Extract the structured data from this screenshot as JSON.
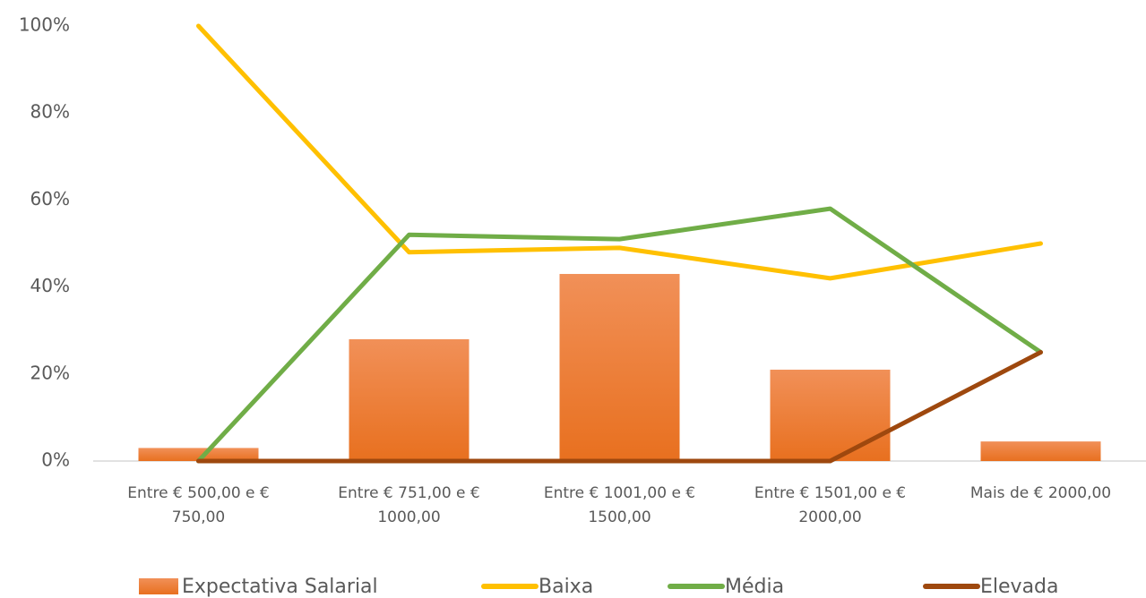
{
  "chart_data": {
    "type": "combo",
    "categories": [
      "Entre € 500,00 e € 750,00",
      "Entre € 751,00 e € 1000,00",
      "Entre € 1001,00 e € 1500,00",
      "Entre € 1501,00 e € 2000,00",
      "Mais de € 2000,00"
    ],
    "series": [
      {
        "name": "Expectativa Salarial",
        "type": "bar",
        "color": "#ed7d31",
        "values": [
          3,
          28,
          43,
          21,
          4.5
        ]
      },
      {
        "name": "Baixa",
        "type": "line",
        "color": "#ffc000",
        "values": [
          100,
          48,
          49,
          42,
          50
        ]
      },
      {
        "name": "Média",
        "type": "line",
        "color": "#70ad47",
        "values": [
          0,
          52,
          51,
          58,
          25
        ]
      },
      {
        "name": "Elevada",
        "type": "line",
        "color": "#9e480e",
        "values": [
          0,
          0,
          0,
          0,
          25
        ]
      }
    ],
    "ylim": [
      0,
      100
    ],
    "yticks": [
      {
        "value": 0,
        "label": "0%"
      },
      {
        "value": 20,
        "label": "20%"
      },
      {
        "value": 40,
        "label": "40%"
      },
      {
        "value": 60,
        "label": "60%"
      },
      {
        "value": 80,
        "label": "80%"
      },
      {
        "value": 100,
        "label": "100%"
      }
    ],
    "grid": false
  }
}
